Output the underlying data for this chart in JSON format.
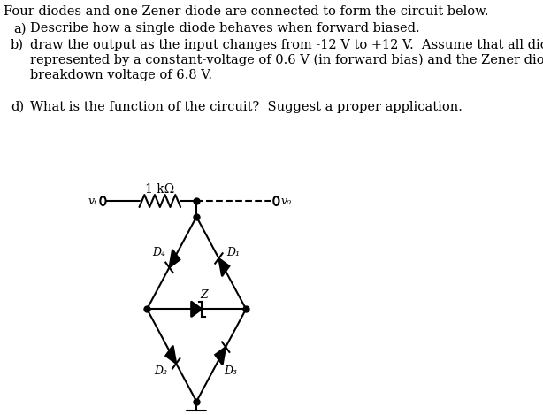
{
  "title_line": "Four diodes and one Zener diode are connected to form the circuit below.",
  "item_a_label": "a)",
  "item_a_text": "Describe how a single diode behaves when forward biased.",
  "item_b_label": "b)",
  "item_b_line1": "draw the output as the input changes from -12 V to +12 V.  Assume that all diodes can be",
  "item_b_line2": "represented by a constant-voltage of 0.6 V (in forward bias) and the Zener diode has a",
  "item_b_line3": "breakdown voltage of 6.8 V.",
  "item_d_label": "d)",
  "item_d_text": "What is the function of the circuit?  Suggest a proper application.",
  "text_color": "#000000",
  "bg_color": "#ffffff",
  "font_size": 10.0,
  "resistor_label": "1 kΩ",
  "vi_label": "vᵢ",
  "vo_label": "v₀",
  "D1_label": "D₁",
  "D2_label": "D₂",
  "D3_label": "D₃",
  "D4_label": "D₄",
  "Z_label": "Z"
}
